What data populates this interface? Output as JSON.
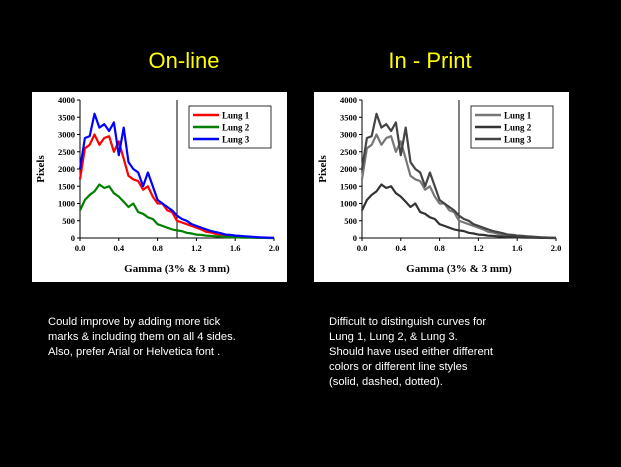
{
  "slide": {
    "background": "#000000",
    "heading_color": "#ffff00",
    "left_title": "On-line",
    "right_title": "In - Print",
    "left_caption": "Could improve by adding more tick\nmarks & including them on all 4 sides.\nAlso, prefer Arial or Helvetica font .",
    "right_caption": "Difficult to distinguish curves for\nLung 1, Lung 2, & Lung 3.\nShould have used either different\ncolors or different line styles\n(solid, dashed, dotted)."
  },
  "chart_data": [
    {
      "type": "line",
      "xlabel": "Gamma (3% & 3 mm)",
      "ylabel": "Pixels",
      "xlim": [
        0,
        2.0
      ],
      "ylim": [
        0,
        4000
      ],
      "xticks": [
        "0.0",
        "0.4",
        "0.8",
        "1.2",
        "1.6",
        "2.0"
      ],
      "yticks": [
        "0",
        "500",
        "1000",
        "1500",
        "2000",
        "2500",
        "3000",
        "3500",
        "4000"
      ],
      "ref_line_x": 1.0,
      "legend_position": "top-right",
      "x": [
        0.0,
        0.05,
        0.1,
        0.15,
        0.2,
        0.25,
        0.3,
        0.35,
        0.4,
        0.45,
        0.5,
        0.55,
        0.6,
        0.65,
        0.7,
        0.75,
        0.8,
        0.85,
        0.9,
        0.95,
        1.0,
        1.05,
        1.1,
        1.15,
        1.2,
        1.25,
        1.3,
        1.35,
        1.4,
        1.45,
        1.5,
        1.55,
        1.6,
        1.65,
        1.7,
        1.75,
        1.8,
        1.85,
        1.9,
        1.95,
        2.0
      ],
      "series": [
        {
          "name": "Lung 1",
          "color": "#ff0000",
          "values": [
            1700,
            2600,
            2700,
            3000,
            2700,
            2900,
            2950,
            2500,
            2800,
            2300,
            1800,
            1700,
            1650,
            1400,
            1500,
            1200,
            1000,
            1000,
            800,
            750,
            500,
            450,
            400,
            350,
            300,
            250,
            180,
            160,
            120,
            100,
            80,
            60,
            50,
            40,
            30,
            20,
            15,
            10,
            5,
            3,
            0
          ]
        },
        {
          "name": "Lung 2",
          "color": "#008000",
          "values": [
            800,
            1100,
            1250,
            1350,
            1550,
            1450,
            1500,
            1300,
            1200,
            1050,
            900,
            1000,
            750,
            700,
            600,
            550,
            400,
            350,
            300,
            250,
            220,
            200,
            150,
            130,
            100,
            90,
            70,
            60,
            50,
            40,
            30,
            25,
            20,
            15,
            10,
            8,
            5,
            3,
            2,
            1,
            0
          ]
        },
        {
          "name": "Lung 3",
          "color": "#0000ff",
          "values": [
            2000,
            2900,
            2950,
            3600,
            3200,
            3300,
            3100,
            3350,
            2400,
            3200,
            2200,
            2000,
            1900,
            1500,
            1900,
            1500,
            1100,
            1000,
            900,
            800,
            650,
            550,
            500,
            400,
            350,
            300,
            250,
            200,
            170,
            140,
            100,
            90,
            70,
            60,
            50,
            40,
            30,
            20,
            15,
            10,
            5
          ]
        }
      ]
    },
    {
      "type": "line",
      "xlabel": "Gamma (3% & 3 mm)",
      "ylabel": "Pixels",
      "xlim": [
        0,
        2.0
      ],
      "ylim": [
        0,
        4000
      ],
      "xticks": [
        "0.0",
        "0.4",
        "0.8",
        "1.2",
        "1.6",
        "2.0"
      ],
      "yticks": [
        "0",
        "500",
        "1000",
        "1500",
        "2000",
        "2500",
        "3000",
        "3500",
        "4000"
      ],
      "ref_line_x": 1.0,
      "legend_position": "top-right",
      "x": [
        0.0,
        0.05,
        0.1,
        0.15,
        0.2,
        0.25,
        0.3,
        0.35,
        0.4,
        0.45,
        0.5,
        0.55,
        0.6,
        0.65,
        0.7,
        0.75,
        0.8,
        0.85,
        0.9,
        0.95,
        1.0,
        1.05,
        1.1,
        1.15,
        1.2,
        1.25,
        1.3,
        1.35,
        1.4,
        1.45,
        1.5,
        1.55,
        1.6,
        1.65,
        1.7,
        1.75,
        1.8,
        1.85,
        1.9,
        1.95,
        2.0
      ],
      "series": [
        {
          "name": "Lung 1",
          "color": "#777777",
          "values": [
            1700,
            2600,
            2700,
            3000,
            2700,
            2900,
            2950,
            2500,
            2800,
            2300,
            1800,
            1700,
            1650,
            1400,
            1500,
            1200,
            1000,
            1000,
            800,
            750,
            500,
            450,
            400,
            350,
            300,
            250,
            180,
            160,
            120,
            100,
            80,
            60,
            50,
            40,
            30,
            20,
            15,
            10,
            5,
            3,
            0
          ]
        },
        {
          "name": "Lung 2",
          "color": "#333333",
          "values": [
            800,
            1100,
            1250,
            1350,
            1550,
            1450,
            1500,
            1300,
            1200,
            1050,
            900,
            1000,
            750,
            700,
            600,
            550,
            400,
            350,
            300,
            250,
            220,
            200,
            150,
            130,
            100,
            90,
            70,
            60,
            50,
            40,
            30,
            25,
            20,
            15,
            10,
            8,
            5,
            3,
            2,
            1,
            0
          ]
        },
        {
          "name": "Lung 3",
          "color": "#444444",
          "values": [
            2000,
            2900,
            2950,
            3600,
            3200,
            3300,
            3100,
            3350,
            2400,
            3200,
            2200,
            2000,
            1900,
            1500,
            1900,
            1500,
            1100,
            1000,
            900,
            800,
            650,
            550,
            500,
            400,
            350,
            300,
            250,
            200,
            170,
            140,
            100,
            90,
            70,
            60,
            50,
            40,
            30,
            20,
            15,
            10,
            5
          ]
        }
      ]
    }
  ]
}
